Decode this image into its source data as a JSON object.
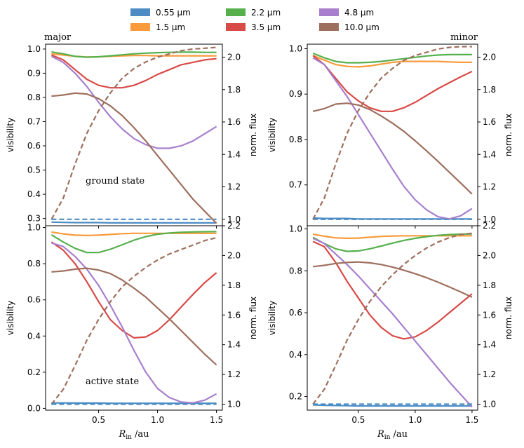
{
  "figure": {
    "legend": [
      {
        "label": "0.55 μm",
        "color": "#4c8cc4"
      },
      {
        "label": "1.5 μm",
        "color": "#f99b3b"
      },
      {
        "label": "2.2 μm",
        "color": "#55b04c"
      },
      {
        "label": "3.5 μm",
        "color": "#d84a47"
      },
      {
        "label": "4.8 μm",
        "color": "#a77fce"
      },
      {
        "label": "10.0 μm",
        "color": "#9e6f5e"
      }
    ],
    "shared_xlabel_main": "R",
    "shared_xlabel_sub": "in",
    "shared_xlabel_unit": " /au"
  },
  "chart_data": [
    {
      "id": "top-left",
      "type": "line",
      "title": "major",
      "annotation": "ground state",
      "xlabel": "",
      "ylabel": "visibility",
      "ylabel_right": "norm. flux",
      "xlim": [
        0.05,
        1.55
      ],
      "ylim": [
        0.27,
        1.02
      ],
      "y2lim": [
        0.96,
        2.08
      ],
      "xticks": [
        0.5,
        1.0,
        1.5
      ],
      "xticklabels": [
        "",
        "",
        ""
      ],
      "yticks": [
        0.3,
        0.4,
        0.5,
        0.6,
        0.7,
        0.8,
        0.9,
        1.0
      ],
      "yticklabels": [
        "0.3",
        "0.4",
        "0.5",
        "0.6",
        "0.7",
        "0.8",
        "0.9",
        "1.0"
      ],
      "y2ticks": [
        1.0,
        1.2,
        1.4,
        1.6,
        1.8,
        2.0
      ],
      "y2ticklabels": [
        "1.0",
        "1.2",
        "1.4",
        "1.6",
        "1.8",
        "2.0"
      ],
      "x": [
        0.1,
        0.2,
        0.3,
        0.4,
        0.5,
        0.6,
        0.7,
        0.8,
        0.9,
        1.0,
        1.1,
        1.2,
        1.3,
        1.4,
        1.5
      ],
      "series": [
        {
          "name": "0.55 μm",
          "values": [
            0.285,
            0.284,
            0.283,
            0.283,
            0.283,
            0.282,
            0.282,
            0.282,
            0.282,
            0.282,
            0.282,
            0.282,
            0.282,
            0.282,
            0.282
          ]
        },
        {
          "name": "1.5 μm",
          "values": [
            0.98,
            0.975,
            0.97,
            0.967,
            0.968,
            0.97,
            0.972,
            0.973,
            0.973,
            0.972,
            0.972,
            0.972,
            0.972,
            0.972,
            0.972
          ]
        },
        {
          "name": "2.2 μm",
          "values": [
            0.988,
            0.98,
            0.97,
            0.966,
            0.968,
            0.972,
            0.976,
            0.98,
            0.983,
            0.985,
            0.986,
            0.987,
            0.987,
            0.986,
            0.986
          ]
        },
        {
          "name": "3.5 μm",
          "values": [
            0.975,
            0.955,
            0.915,
            0.875,
            0.85,
            0.84,
            0.84,
            0.85,
            0.87,
            0.895,
            0.915,
            0.935,
            0.945,
            0.955,
            0.96
          ]
        },
        {
          "name": "4.8 μm",
          "values": [
            0.97,
            0.945,
            0.9,
            0.845,
            0.78,
            0.72,
            0.67,
            0.63,
            0.605,
            0.59,
            0.59,
            0.6,
            0.62,
            0.65,
            0.68
          ]
        },
        {
          "name": "10.0 μm",
          "values": [
            0.805,
            0.81,
            0.818,
            0.814,
            0.795,
            0.765,
            0.725,
            0.675,
            0.62,
            0.56,
            0.5,
            0.44,
            0.38,
            0.33,
            0.28
          ]
        },
        {
          "name": "10.0 μm norm. flux",
          "axis": "right",
          "dashed": true,
          "values": [
            1.0,
            1.13,
            1.34,
            1.53,
            1.67,
            1.78,
            1.87,
            1.93,
            1.97,
            2.0,
            2.02,
            2.04,
            2.05,
            2.055,
            2.06
          ]
        },
        {
          "name": "0.55 μm norm. flux",
          "axis": "right",
          "dashed": true,
          "values": [
            1.0,
            1.0,
            1.0,
            1.0,
            1.0,
            1.0,
            1.0,
            1.0,
            1.0,
            1.0,
            1.0,
            1.0,
            1.0,
            1.0,
            1.0
          ]
        }
      ]
    },
    {
      "id": "top-right",
      "type": "line",
      "title": "minor",
      "annotation": "",
      "xlabel": "",
      "ylabel": "visibility",
      "ylabel_right": "norm. flux",
      "xlim": [
        0.05,
        1.55
      ],
      "ylim": [
        0.61,
        1.01
      ],
      "y2lim": [
        0.96,
        2.08
      ],
      "xticks": [
        0.5,
        1.0,
        1.5
      ],
      "xticklabels": [
        "",
        "",
        ""
      ],
      "yticks": [
        0.7,
        0.8,
        0.9,
        1.0
      ],
      "yticklabels": [
        "0.7",
        "0.8",
        "0.9",
        "1.0"
      ],
      "y2ticks": [
        1.0,
        1.2,
        1.4,
        1.6,
        1.8,
        2.0
      ],
      "y2ticklabels": [
        "1.0",
        "1.2",
        "1.4",
        "1.6",
        "1.8",
        "2.0"
      ],
      "x": [
        0.1,
        0.2,
        0.3,
        0.4,
        0.5,
        0.6,
        0.7,
        0.8,
        0.9,
        1.0,
        1.1,
        1.2,
        1.3,
        1.4,
        1.5
      ],
      "series": [
        {
          "name": "0.55 μm",
          "values": [
            0.627,
            0.626,
            0.626,
            0.626,
            0.625,
            0.625,
            0.625,
            0.625,
            0.625,
            0.625,
            0.625,
            0.625,
            0.625,
            0.625,
            0.625
          ]
        },
        {
          "name": "1.5 μm",
          "values": [
            0.985,
            0.975,
            0.965,
            0.961,
            0.96,
            0.962,
            0.966,
            0.97,
            0.972,
            0.972,
            0.972,
            0.972,
            0.971,
            0.97,
            0.97
          ]
        },
        {
          "name": "2.2 μm",
          "values": [
            0.99,
            0.98,
            0.972,
            0.969,
            0.969,
            0.97,
            0.972,
            0.975,
            0.978,
            0.981,
            0.984,
            0.986,
            0.987,
            0.987,
            0.987
          ]
        },
        {
          "name": "3.5 μm",
          "values": [
            0.985,
            0.965,
            0.935,
            0.905,
            0.885,
            0.87,
            0.862,
            0.862,
            0.87,
            0.882,
            0.897,
            0.912,
            0.925,
            0.938,
            0.95
          ]
        },
        {
          "name": "4.8 μm",
          "values": [
            0.98,
            0.965,
            0.93,
            0.895,
            0.855,
            0.815,
            0.775,
            0.735,
            0.697,
            0.667,
            0.645,
            0.63,
            0.625,
            0.632,
            0.648
          ]
        },
        {
          "name": "10.0 μm",
          "values": [
            0.862,
            0.868,
            0.878,
            0.88,
            0.876,
            0.866,
            0.852,
            0.836,
            0.818,
            0.797,
            0.775,
            0.752,
            0.728,
            0.704,
            0.68
          ]
        },
        {
          "name": "10.0 μm norm. flux",
          "axis": "right",
          "dashed": true,
          "values": [
            1.0,
            1.13,
            1.34,
            1.53,
            1.67,
            1.78,
            1.87,
            1.93,
            1.98,
            2.01,
            2.03,
            2.05,
            2.06,
            2.065,
            2.065
          ]
        },
        {
          "name": "0.55 μm norm. flux",
          "axis": "right",
          "dashed": true,
          "values": [
            1.0,
            1.0,
            1.0,
            1.0,
            1.0,
            1.0,
            1.0,
            1.0,
            1.0,
            1.0,
            1.0,
            1.0,
            1.0,
            1.0,
            1.0
          ]
        }
      ]
    },
    {
      "id": "bottom-left",
      "type": "line",
      "title": "",
      "annotation": "active state",
      "xlabel": "R_in /au",
      "ylabel": "visibility",
      "ylabel_right": "norm. flux",
      "xlim": [
        0.05,
        1.55
      ],
      "ylim": [
        -0.01,
        1.01
      ],
      "y2lim": [
        0.96,
        2.2
      ],
      "xticks": [
        0.5,
        1.0,
        1.5
      ],
      "xticklabels": [
        "0.5",
        "1.0",
        "1.5"
      ],
      "yticks": [
        0.0,
        0.2,
        0.4,
        0.6,
        0.8,
        1.0
      ],
      "yticklabels": [
        "0.0",
        "0.2",
        "0.4",
        "0.6",
        "0.8",
        "1.0"
      ],
      "y2ticks": [
        1.0,
        1.2,
        1.4,
        1.6,
        1.8,
        2.0,
        2.2
      ],
      "y2ticklabels": [
        "1.0",
        "1.2",
        "1.4",
        "1.6",
        "1.8",
        "2.0",
        "2.2"
      ],
      "x": [
        0.1,
        0.2,
        0.3,
        0.4,
        0.5,
        0.6,
        0.7,
        0.8,
        0.9,
        1.0,
        1.1,
        1.2,
        1.3,
        1.4,
        1.5
      ],
      "series": [
        {
          "name": "0.55 μm",
          "values": [
            0.03,
            0.03,
            0.029,
            0.029,
            0.029,
            0.028,
            0.028,
            0.028,
            0.028,
            0.028,
            0.028,
            0.028,
            0.028,
            0.028,
            0.028
          ]
        },
        {
          "name": "1.5 μm",
          "values": [
            0.975,
            0.965,
            0.958,
            0.956,
            0.958,
            0.962,
            0.966,
            0.968,
            0.968,
            0.968,
            0.968,
            0.968,
            0.968,
            0.968,
            0.968
          ]
        },
        {
          "name": "2.2 μm",
          "values": [
            0.96,
            0.92,
            0.885,
            0.862,
            0.862,
            0.88,
            0.905,
            0.93,
            0.95,
            0.963,
            0.97,
            0.974,
            0.976,
            0.977,
            0.978
          ]
        },
        {
          "name": "3.5 μm",
          "values": [
            0.92,
            0.875,
            0.8,
            0.7,
            0.59,
            0.49,
            0.43,
            0.39,
            0.395,
            0.43,
            0.49,
            0.56,
            0.63,
            0.695,
            0.75
          ]
        },
        {
          "name": "4.8 μm",
          "values": [
            0.915,
            0.895,
            0.84,
            0.77,
            0.68,
            0.57,
            0.45,
            0.32,
            0.2,
            0.11,
            0.06,
            0.035,
            0.03,
            0.045,
            0.08
          ]
        },
        {
          "name": "10.0 μm",
          "values": [
            0.755,
            0.76,
            0.77,
            0.775,
            0.765,
            0.745,
            0.71,
            0.665,
            0.615,
            0.555,
            0.495,
            0.43,
            0.365,
            0.3,
            0.24
          ]
        },
        {
          "name": "10.0 μm norm. flux",
          "axis": "right",
          "dashed": true,
          "values": [
            1.0,
            1.1,
            1.26,
            1.43,
            1.57,
            1.69,
            1.79,
            1.86,
            1.92,
            1.97,
            2.01,
            2.04,
            2.07,
            2.1,
            2.12
          ]
        },
        {
          "name": "0.55 μm norm. flux",
          "axis": "right",
          "dashed": true,
          "values": [
            1.0,
            1.0,
            1.0,
            1.0,
            1.0,
            1.0,
            1.0,
            1.0,
            1.0,
            1.0,
            1.0,
            1.0,
            1.0,
            1.0,
            1.0
          ]
        }
      ]
    },
    {
      "id": "bottom-right",
      "type": "line",
      "title": "",
      "annotation": "",
      "xlabel": "R_in /au",
      "ylabel": "visibility",
      "ylabel_right": "norm. flux",
      "xlim": [
        0.05,
        1.55
      ],
      "ylim": [
        0.135,
        1.015
      ],
      "y2lim": [
        0.96,
        2.2
      ],
      "xticks": [
        0.5,
        1.0,
        1.5
      ],
      "xticklabels": [
        "0.5",
        "1.0",
        "1.5"
      ],
      "yticks": [
        0.2,
        0.4,
        0.6,
        0.8,
        1.0
      ],
      "yticklabels": [
        "0.2",
        "0.4",
        "0.6",
        "0.8",
        "1.0"
      ],
      "y2ticks": [
        1.0,
        1.2,
        1.4,
        1.6,
        1.8,
        2.0,
        2.2
      ],
      "y2ticklabels": [
        "1.0",
        "1.2",
        "1.4",
        "1.6",
        "1.8",
        "2.0",
        "2.2"
      ],
      "x": [
        0.1,
        0.2,
        0.3,
        0.4,
        0.5,
        0.6,
        0.7,
        0.8,
        0.9,
        1.0,
        1.1,
        1.2,
        1.3,
        1.4,
        1.5
      ],
      "series": [
        {
          "name": "0.55 μm",
          "values": [
            0.16,
            0.158,
            0.157,
            0.156,
            0.155,
            0.155,
            0.155,
            0.155,
            0.155,
            0.155,
            0.155,
            0.155,
            0.155,
            0.155,
            0.155
          ]
        },
        {
          "name": "1.5 μm",
          "values": [
            0.975,
            0.965,
            0.957,
            0.955,
            0.956,
            0.96,
            0.964,
            0.966,
            0.967,
            0.967,
            0.967,
            0.967,
            0.967,
            0.967,
            0.967
          ]
        },
        {
          "name": "2.2 μm",
          "values": [
            0.96,
            0.93,
            0.905,
            0.893,
            0.895,
            0.905,
            0.918,
            0.932,
            0.945,
            0.955,
            0.963,
            0.969,
            0.973,
            0.975,
            0.976
          ]
        },
        {
          "name": "3.5 μm",
          "values": [
            0.94,
            0.915,
            0.84,
            0.75,
            0.67,
            0.59,
            0.53,
            0.49,
            0.475,
            0.485,
            0.515,
            0.555,
            0.6,
            0.645,
            0.69
          ]
        },
        {
          "name": "4.8 μm",
          "values": [
            0.955,
            0.93,
            0.88,
            0.83,
            0.775,
            0.715,
            0.655,
            0.595,
            0.53,
            0.465,
            0.4,
            0.335,
            0.27,
            0.21,
            0.15
          ]
        },
        {
          "name": "10.0 μm",
          "values": [
            0.82,
            0.826,
            0.835,
            0.84,
            0.842,
            0.838,
            0.83,
            0.818,
            0.803,
            0.786,
            0.767,
            0.746,
            0.723,
            0.699,
            0.674
          ]
        },
        {
          "name": "10.0 μm norm. flux",
          "axis": "right",
          "dashed": true,
          "values": [
            1.0,
            1.1,
            1.26,
            1.43,
            1.57,
            1.69,
            1.79,
            1.87,
            1.94,
            2.0,
            2.05,
            2.09,
            2.12,
            2.14,
            2.15
          ]
        },
        {
          "name": "0.55 μm norm. flux",
          "axis": "right",
          "dashed": true,
          "values": [
            1.0,
            1.0,
            1.0,
            1.0,
            1.0,
            1.0,
            1.0,
            1.0,
            1.0,
            1.0,
            1.0,
            1.0,
            1.0,
            1.0,
            1.0
          ]
        }
      ]
    }
  ]
}
